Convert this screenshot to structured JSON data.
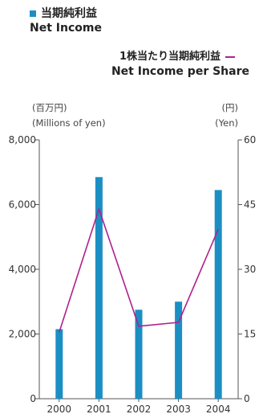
{
  "chart_data": {
    "type": "bar+line",
    "categories": [
      "2000",
      "2001",
      "2002",
      "2003",
      "2004"
    ],
    "series": [
      {
        "name_ja": "当期純利益",
        "name_en": "Net Income",
        "type": "bar",
        "axis": "left",
        "color": "#1b8fc4",
        "values": [
          2150,
          6850,
          2750,
          3000,
          6450
        ]
      },
      {
        "name_ja": "1株当たり当期純利益",
        "name_en": "Net Income per Share",
        "type": "line",
        "axis": "right",
        "color": "#b0208c",
        "values": [
          15.4,
          44.0,
          16.8,
          17.7,
          39.3
        ]
      }
    ],
    "left_axis": {
      "unit_ja": "(百万円)",
      "unit_en": "(Millions of yen)",
      "min": 0,
      "max": 8000,
      "ticks": [
        0,
        2000,
        4000,
        6000,
        8000
      ],
      "tick_labels": [
        "0",
        "2,000",
        "4,000",
        "6,000",
        "8,000"
      ]
    },
    "right_axis": {
      "unit_ja": "(円)",
      "unit_en": "(Yen)",
      "min": 0,
      "max": 60,
      "ticks": [
        0,
        15,
        30,
        45,
        60
      ],
      "tick_labels": [
        "0",
        "15",
        "30",
        "45",
        "60"
      ]
    },
    "grid": false
  }
}
